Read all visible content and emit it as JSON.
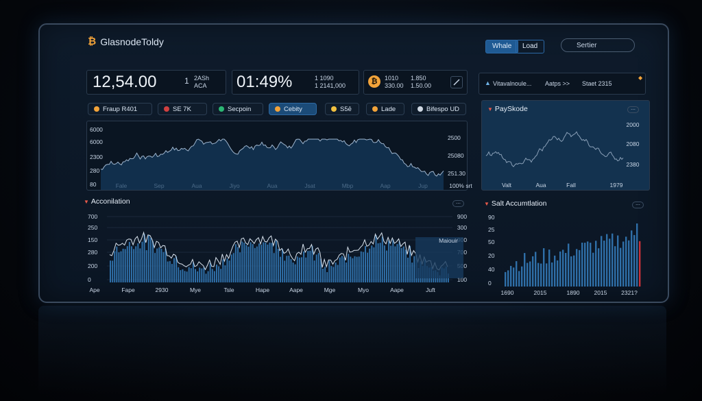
{
  "header": {
    "app_title": "GlasnodeToldy",
    "btn_whale": "Whale",
    "btn_load": "Load",
    "search_placeholder": "Sertier"
  },
  "stats": {
    "price": "12,54.00",
    "price_sub1": "1",
    "price_sub2": "2ASh",
    "price_sub3": "ACA",
    "change": "01:49%",
    "change_sub1": "1 1090",
    "change_sub2": "1 2141,000",
    "btc_a1": "1010",
    "btc_a2": "330.00",
    "btc_b1": "1.850",
    "btc_b2": "1.50.00",
    "alert_text": "Vitavalnoule...",
    "alert_mid": "Aatps >>",
    "alert_right": "Staet 2315"
  },
  "filters": [
    {
      "label": "Fraup R401",
      "icon": "btc-coin-icon",
      "color": "#f2a33a",
      "active": false
    },
    {
      "label": "SE 7K",
      "icon": "flag-icon",
      "color": "#d04040",
      "active": false
    },
    {
      "label": "Secpoin",
      "icon": "green-dot-icon",
      "color": "#2bb673",
      "active": false
    },
    {
      "label": "Cebity",
      "icon": "arrow-icon",
      "color": "#f2a33a",
      "active": true
    },
    {
      "label": "S5ē",
      "icon": "cloud-icon",
      "color": "#f0c040",
      "active": false
    },
    {
      "label": "Lade",
      "icon": "box-icon",
      "color": "#f2a33a",
      "active": false
    },
    {
      "label": "Bifespo UD",
      "icon": "globe-icon",
      "color": "#cfd8e3",
      "active": false
    }
  ],
  "main_chart": {
    "y_left": [
      "6000",
      "6000",
      "2300",
      "280",
      "80"
    ],
    "y_right": [
      "2500",
      "25080",
      "251.30"
    ],
    "x": [
      "Fale",
      "Sep",
      "Aua",
      "Jiyo",
      "Aua",
      "Jsat",
      "Mbp",
      "Aap",
      "Jup",
      "100% srt"
    ]
  },
  "right_chart": {
    "title": "PaySkode",
    "y_right": [
      "2000",
      "2080",
      "2380"
    ],
    "x": [
      "Valt",
      "Aua",
      "Fall",
      "1979"
    ]
  },
  "accumulation": {
    "title": "Acconilation",
    "annotation": "Maiouir",
    "y_left": [
      "700",
      "250",
      "150",
      "280",
      "200",
      "0"
    ],
    "y_right": [
      "900",
      "300",
      "900",
      "700",
      "500",
      "100"
    ],
    "x": [
      "Ape",
      "Fape",
      "2930",
      "Mye",
      "Tsle",
      "Hape",
      "Aape",
      "Mge",
      "Myo",
      "Aape",
      "Juft"
    ]
  },
  "salt_accumulation": {
    "title": "Salt Accumtlation",
    "y_left": [
      "90",
      "25",
      "50",
      "20",
      "40",
      "0"
    ],
    "x": [
      "1690",
      "2015",
      "1890",
      "2015",
      "2321?"
    ]
  },
  "colors": {
    "accent": "#1f5a93",
    "line": "#9fb6cf",
    "bar": "#2f6fa8",
    "bar_highlight": "#c8323a",
    "bitcoin": "#f2a33a"
  }
}
